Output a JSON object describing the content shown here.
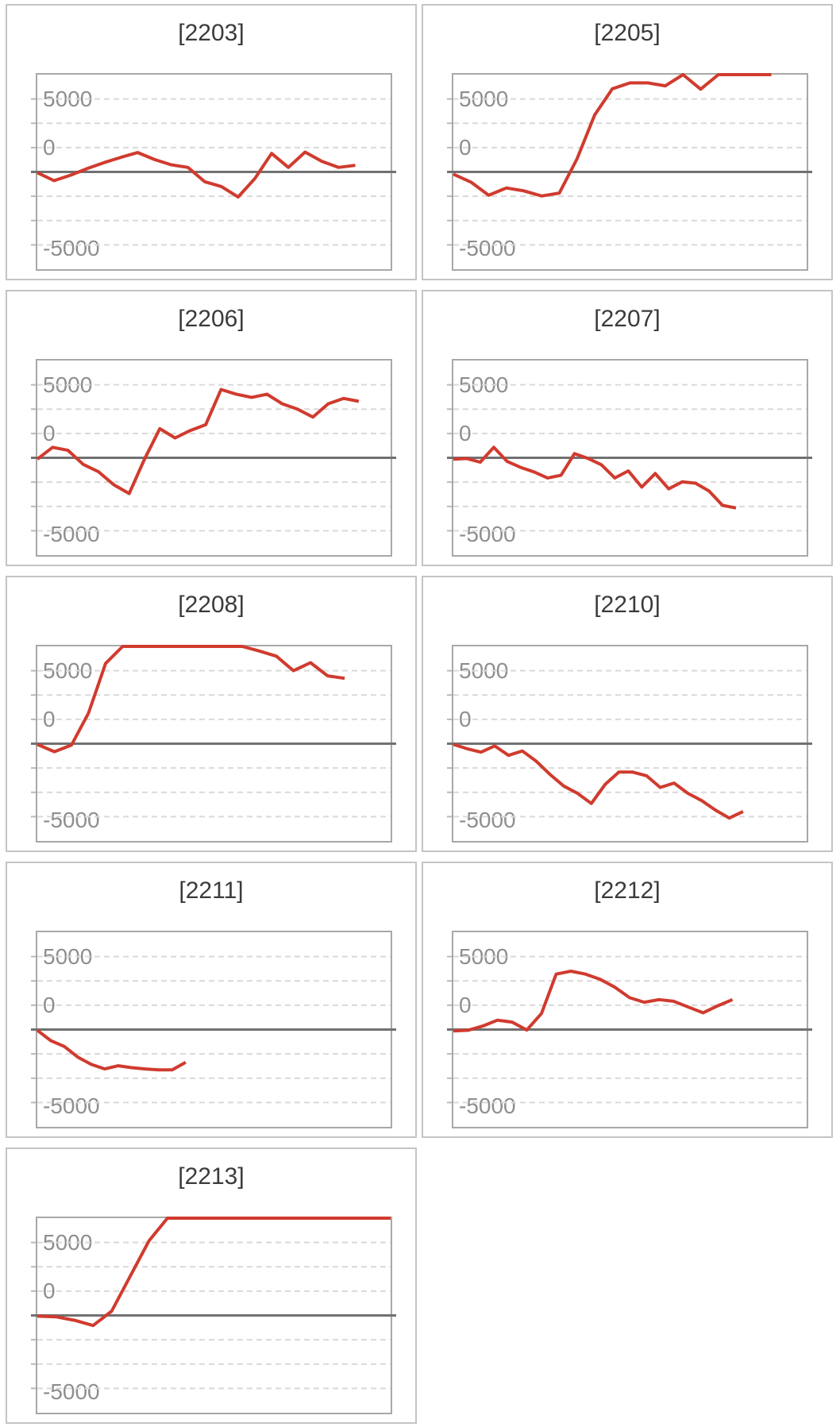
{
  "axis": {
    "tick_labels": [
      "5000",
      "0",
      "-5000"
    ]
  },
  "colors": {
    "series": "#d03b2e",
    "zero_line": "#717171",
    "gridline": "#d9d9d9",
    "tick": "#b9b9b9",
    "plot_border": "#a8a8a8",
    "card_border": "#c4c4c4",
    "title_text": "#3b3b3b",
    "axis_text": "#8e8e8e",
    "background": "#ffffff"
  },
  "chart_data": [
    {
      "title": "[2203]",
      "type": "line",
      "ylim": [
        -6667,
        6667
      ],
      "yticks": [
        5000,
        0,
        -5000
      ],
      "grid_divisions": 8,
      "x_span_frac": 0.9,
      "values": [
        -50,
        -600,
        -220,
        240,
        640,
        1000,
        1330,
        850,
        490,
        310,
        -670,
        -1000,
        -1720,
        -450,
        1270,
        310,
        1360,
        730,
        310,
        450
      ]
    },
    {
      "title": "[2205]",
      "type": "line",
      "ylim": [
        -6667,
        6667
      ],
      "yticks": [
        5000,
        0,
        -5000
      ],
      "grid_divisions": 8,
      "x_span_frac": 0.9,
      "values": [
        -150,
        -700,
        -1600,
        -1100,
        -1300,
        -1650,
        -1450,
        900,
        3900,
        5700,
        6100,
        6100,
        5900,
        6667,
        5670,
        6667,
        6667,
        6667,
        6667
      ]
    },
    {
      "title": "[2206]",
      "type": "line",
      "ylim": [
        -6667,
        6667
      ],
      "yticks": [
        5000,
        0,
        -5000
      ],
      "grid_divisions": 8,
      "x_span_frac": 0.91,
      "values": [
        -90,
        720,
        510,
        -450,
        -960,
        -1850,
        -2450,
        -90,
        2000,
        1360,
        1870,
        2270,
        4680,
        4360,
        4140,
        4360,
        3700,
        3330,
        2790,
        3700,
        4070,
        3870
      ]
    },
    {
      "title": "[2207]",
      "type": "line",
      "ylim": [
        -6667,
        6667
      ],
      "yticks": [
        5000,
        0,
        -5000
      ],
      "grid_divisions": 8,
      "x_span_frac": 0.8,
      "values": [
        -100,
        -50,
        -300,
        720,
        -250,
        -660,
        -970,
        -1380,
        -1200,
        290,
        -40,
        -480,
        -1380,
        -900,
        -2010,
        -1080,
        -2130,
        -1650,
        -1740,
        -2280,
        -3260,
        -3440
      ]
    },
    {
      "title": "[2208]",
      "type": "line",
      "ylim": [
        -6667,
        6667
      ],
      "yticks": [
        5000,
        0,
        -5000
      ],
      "grid_divisions": 8,
      "x_span_frac": 0.87,
      "values": [
        -50,
        -550,
        -100,
        2100,
        5500,
        6667,
        6667,
        6667,
        6667,
        6667,
        6667,
        6667,
        6667,
        6350,
        6000,
        5000,
        5550,
        4650,
        4480
      ]
    },
    {
      "title": "[2210]",
      "type": "line",
      "ylim": [
        -6667,
        6667
      ],
      "yticks": [
        5000,
        0,
        -5000
      ],
      "grid_divisions": 8,
      "x_span_frac": 0.82,
      "values": [
        -50,
        -350,
        -580,
        -150,
        -800,
        -500,
        -1200,
        -2100,
        -2900,
        -3400,
        -4100,
        -2800,
        -1950,
        -1950,
        -2200,
        -3000,
        -2700,
        -3400,
        -3900,
        -4550,
        -5100,
        -4650
      ]
    },
    {
      "title": "[2211]",
      "type": "line",
      "ylim": [
        -6667,
        6667
      ],
      "yticks": [
        5000,
        0,
        -5000
      ],
      "grid_divisions": 8,
      "x_span_frac": 0.42,
      "values": [
        -50,
        -760,
        -1160,
        -1890,
        -2390,
        -2700,
        -2480,
        -2610,
        -2700,
        -2760,
        -2760,
        -2250
      ]
    },
    {
      "title": "[2212]",
      "type": "line",
      "ylim": [
        -6667,
        6667
      ],
      "yticks": [
        5000,
        0,
        -5000
      ],
      "grid_divisions": 8,
      "x_span_frac": 0.79,
      "values": [
        -90,
        -50,
        240,
        640,
        510,
        -30,
        1100,
        3800,
        4000,
        3800,
        3440,
        2900,
        2180,
        1870,
        2050,
        1940,
        1540,
        1150,
        1630,
        2050
      ]
    },
    {
      "title": "[2213]",
      "type": "line",
      "ylim": [
        -6667,
        6667
      ],
      "yticks": [
        5000,
        0,
        -5000
      ],
      "grid_divisions": 8,
      "x_span_frac": 1.0,
      "values": [
        -50,
        -90,
        -330,
        -690,
        300,
        2700,
        5100,
        6667,
        6667,
        6667,
        6667,
        6667,
        6667,
        6667,
        6667,
        6667,
        6667,
        6667,
        6667,
        6667
      ]
    }
  ]
}
